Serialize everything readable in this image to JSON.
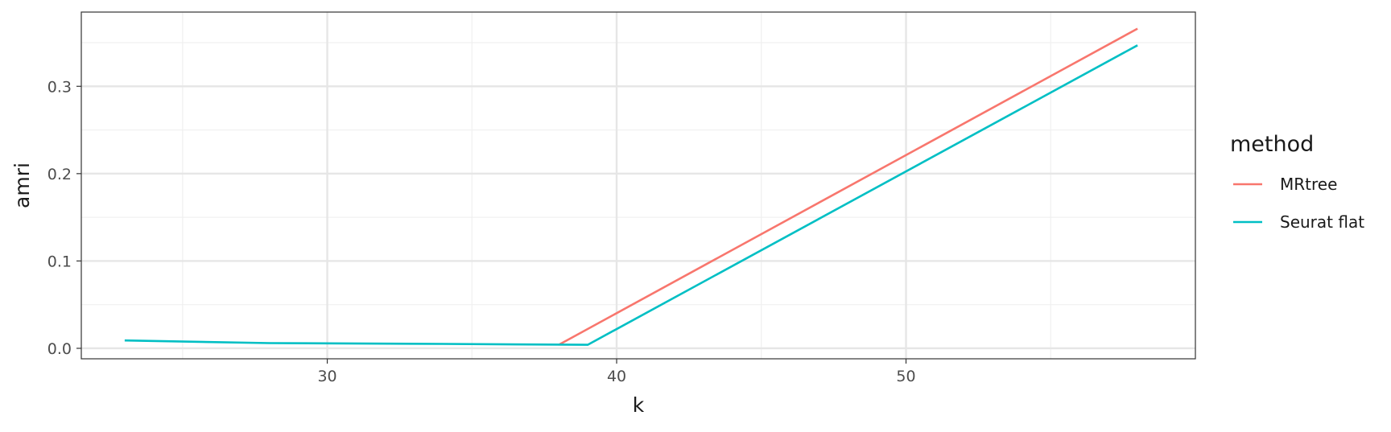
{
  "chart_data": {
    "type": "line",
    "xlabel": "k",
    "ylabel": "amri",
    "xlim": [
      21.5,
      60
    ],
    "ylim": [
      -0.012,
      0.385
    ],
    "x_ticks": [
      30,
      40,
      50
    ],
    "x_minor": [
      25,
      35,
      45,
      55
    ],
    "y_ticks": [
      0.0,
      0.1,
      0.2,
      0.3
    ],
    "y_minor": [
      0.05,
      0.15,
      0.25,
      0.35
    ],
    "x_tick_labels": [
      "30",
      "40",
      "50"
    ],
    "y_tick_labels": [
      "0.0",
      "0.1",
      "0.2",
      "0.3"
    ],
    "grid": true,
    "legend": {
      "title": "method",
      "position": "right"
    },
    "series": [
      {
        "name": "MRtree",
        "color": "#F8766D",
        "x": [
          38,
          58
        ],
        "y": [
          0.004,
          0.366
        ]
      },
      {
        "name": "Seurat flat",
        "color": "#00BFC4",
        "x": [
          23,
          28,
          34,
          39,
          58
        ],
        "y": [
          0.009,
          0.006,
          0.005,
          0.004,
          0.347
        ]
      }
    ]
  }
}
